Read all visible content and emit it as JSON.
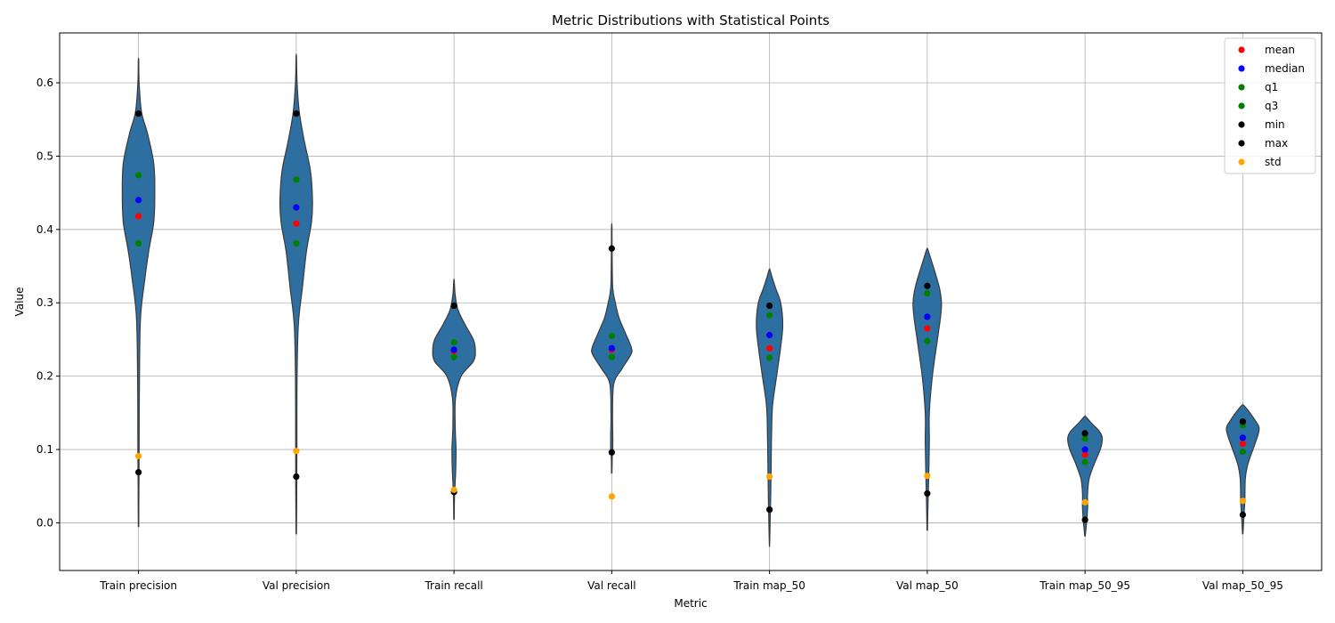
{
  "chart_data": {
    "type": "violin",
    "title": "Metric Distributions with Statistical Points",
    "xlabel": "Metric",
    "ylabel": "Value",
    "ylim": [
      -0.065,
      0.668
    ],
    "yticks": [
      0.0,
      0.1,
      0.2,
      0.3,
      0.4,
      0.5,
      0.6
    ],
    "ytick_labels": [
      "0.0",
      "0.1",
      "0.2",
      "0.3",
      "0.4",
      "0.5",
      "0.6"
    ],
    "grid": true,
    "legend_position": "top-right",
    "violin_color": "#2e6fa2",
    "categories": [
      "Train precision",
      "Val precision",
      "Train recall",
      "Val recall",
      "Train map_50",
      "Val map_50",
      "Train map_50_95",
      "Val map_50_95"
    ],
    "violins": [
      {
        "profile": [
          [
            -0.005,
            0.002
          ],
          [
            0.05,
            0.004
          ],
          [
            0.1,
            0.006
          ],
          [
            0.2,
            0.009
          ],
          [
            0.28,
            0.02
          ],
          [
            0.33,
            0.06
          ],
          [
            0.37,
            0.1
          ],
          [
            0.41,
            0.15
          ],
          [
            0.45,
            0.16
          ],
          [
            0.49,
            0.15
          ],
          [
            0.53,
            0.09
          ],
          [
            0.56,
            0.03
          ],
          [
            0.6,
            0.006
          ],
          [
            0.63,
            0.002
          ]
        ]
      },
      {
        "profile": [
          [
            -0.015,
            0.002
          ],
          [
            0.05,
            0.005
          ],
          [
            0.12,
            0.006
          ],
          [
            0.2,
            0.008
          ],
          [
            0.27,
            0.02
          ],
          [
            0.32,
            0.06
          ],
          [
            0.37,
            0.1
          ],
          [
            0.41,
            0.15
          ],
          [
            0.44,
            0.16
          ],
          [
            0.48,
            0.14
          ],
          [
            0.52,
            0.08
          ],
          [
            0.56,
            0.03
          ],
          [
            0.6,
            0.008
          ],
          [
            0.635,
            0.002
          ]
        ]
      },
      {
        "profile": [
          [
            0.005,
            0.002
          ],
          [
            0.04,
            0.006
          ],
          [
            0.07,
            0.016
          ],
          [
            0.1,
            0.02
          ],
          [
            0.13,
            0.012
          ],
          [
            0.17,
            0.015
          ],
          [
            0.2,
            0.07
          ],
          [
            0.22,
            0.19
          ],
          [
            0.235,
            0.21
          ],
          [
            0.25,
            0.19
          ],
          [
            0.27,
            0.11
          ],
          [
            0.29,
            0.04
          ],
          [
            0.31,
            0.012
          ],
          [
            0.33,
            0.002
          ]
        ]
      },
      {
        "profile": [
          [
            0.068,
            0.002
          ],
          [
            0.09,
            0.005
          ],
          [
            0.1,
            0.01
          ],
          [
            0.12,
            0.01
          ],
          [
            0.15,
            0.008
          ],
          [
            0.19,
            0.02
          ],
          [
            0.21,
            0.1
          ],
          [
            0.23,
            0.19
          ],
          [
            0.24,
            0.19
          ],
          [
            0.26,
            0.13
          ],
          [
            0.28,
            0.07
          ],
          [
            0.3,
            0.035
          ],
          [
            0.32,
            0.01
          ],
          [
            0.36,
            0.004
          ],
          [
            0.403,
            0.002
          ]
        ]
      },
      {
        "profile": [
          [
            -0.032,
            0.001
          ],
          [
            0.0,
            0.006
          ],
          [
            0.04,
            0.012
          ],
          [
            0.08,
            0.016
          ],
          [
            0.12,
            0.02
          ],
          [
            0.16,
            0.03
          ],
          [
            0.2,
            0.07
          ],
          [
            0.24,
            0.11
          ],
          [
            0.27,
            0.13
          ],
          [
            0.3,
            0.11
          ],
          [
            0.32,
            0.06
          ],
          [
            0.335,
            0.025
          ],
          [
            0.345,
            0.004
          ]
        ]
      },
      {
        "profile": [
          [
            -0.01,
            0.002
          ],
          [
            0.03,
            0.008
          ],
          [
            0.07,
            0.015
          ],
          [
            0.11,
            0.02
          ],
          [
            0.15,
            0.02
          ],
          [
            0.2,
            0.05
          ],
          [
            0.25,
            0.1
          ],
          [
            0.28,
            0.13
          ],
          [
            0.3,
            0.14
          ],
          [
            0.32,
            0.12
          ],
          [
            0.34,
            0.08
          ],
          [
            0.36,
            0.035
          ],
          [
            0.373,
            0.005
          ]
        ]
      },
      {
        "profile": [
          [
            -0.018,
            0.002
          ],
          [
            0.0,
            0.015
          ],
          [
            0.02,
            0.025
          ],
          [
            0.04,
            0.025
          ],
          [
            0.06,
            0.04
          ],
          [
            0.08,
            0.09
          ],
          [
            0.1,
            0.15
          ],
          [
            0.115,
            0.17
          ],
          [
            0.125,
            0.14
          ],
          [
            0.135,
            0.07
          ],
          [
            0.145,
            0.005
          ]
        ]
      },
      {
        "profile": [
          [
            -0.015,
            0.002
          ],
          [
            0.01,
            0.012
          ],
          [
            0.03,
            0.02
          ],
          [
            0.06,
            0.025
          ],
          [
            0.08,
            0.05
          ],
          [
            0.1,
            0.1
          ],
          [
            0.12,
            0.15
          ],
          [
            0.13,
            0.16
          ],
          [
            0.14,
            0.12
          ],
          [
            0.15,
            0.07
          ],
          [
            0.16,
            0.01
          ]
        ]
      }
    ],
    "stat_series": [
      {
        "name": "mean",
        "color": "#ff0000",
        "values": [
          0.418,
          0.408,
          0.234,
          0.236,
          0.238,
          0.265,
          0.093,
          0.108
        ]
      },
      {
        "name": "median",
        "color": "#0000ff",
        "values": [
          0.44,
          0.43,
          0.236,
          0.238,
          0.256,
          0.281,
          0.1,
          0.116
        ]
      },
      {
        "name": "q1",
        "color": "#008000",
        "values": [
          0.381,
          0.381,
          0.226,
          0.226,
          0.225,
          0.248,
          0.083,
          0.097
        ]
      },
      {
        "name": "q3",
        "color": "#008000",
        "values": [
          0.474,
          0.468,
          0.246,
          0.255,
          0.283,
          0.313,
          0.115,
          0.133
        ]
      },
      {
        "name": "min",
        "color": "#000000",
        "values": [
          0.069,
          0.063,
          0.042,
          0.096,
          0.018,
          0.04,
          0.004,
          0.011
        ]
      },
      {
        "name": "max",
        "color": "#000000",
        "values": [
          0.558,
          0.558,
          0.296,
          0.374,
          0.296,
          0.323,
          0.122,
          0.138
        ]
      },
      {
        "name": "std",
        "color": "#ffa500",
        "values": [
          0.091,
          0.098,
          0.045,
          0.036,
          0.063,
          0.064,
          0.028,
          0.03
        ]
      }
    ]
  }
}
